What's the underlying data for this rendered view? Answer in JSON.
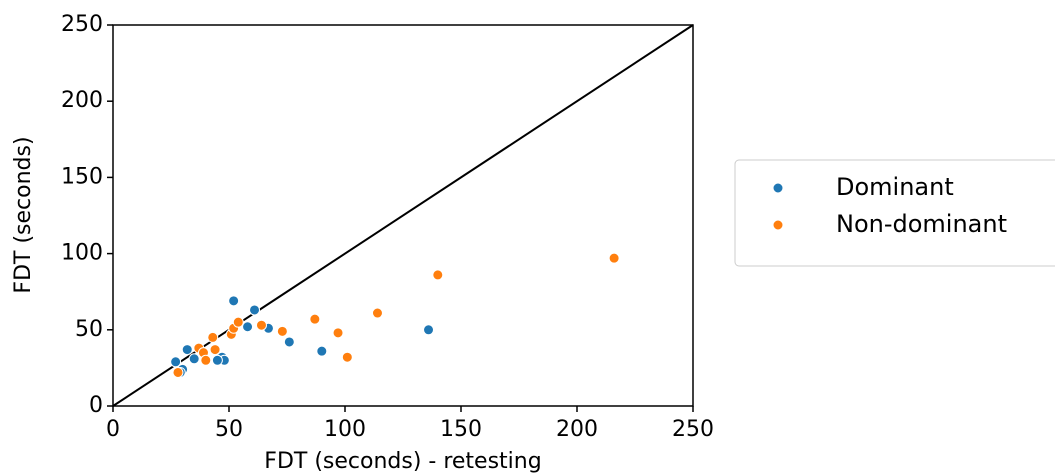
{
  "chart_data": {
    "type": "scatter",
    "x_label": "FDT (seconds) - retesting",
    "y_label": "FDT (seconds)",
    "xlim": [
      0,
      250
    ],
    "ylim": [
      0,
      250
    ],
    "xticks": [
      0,
      50,
      100,
      150,
      200,
      250
    ],
    "yticks": [
      0,
      50,
      100,
      150,
      200,
      250
    ],
    "series": [
      {
        "name": "Dominant",
        "color": "#1f77b4",
        "x": [
          27,
          30,
          32,
          35,
          47,
          48,
          52,
          58,
          61,
          67,
          76,
          90,
          136,
          29,
          45
        ],
        "values": [
          29,
          24,
          37,
          31,
          32,
          30,
          69,
          52,
          63,
          51,
          42,
          36,
          50,
          22,
          30
        ]
      },
      {
        "name": "Non-dominant",
        "color": "#ff7f0e",
        "x": [
          28,
          37,
          39,
          40,
          43,
          44,
          51,
          52,
          54,
          64,
          73,
          87,
          97,
          101,
          114,
          140,
          216
        ],
        "values": [
          22,
          38,
          35,
          30,
          45,
          37,
          47,
          51,
          55,
          53,
          49,
          57,
          48,
          32,
          61,
          86,
          97
        ]
      }
    ]
  }
}
